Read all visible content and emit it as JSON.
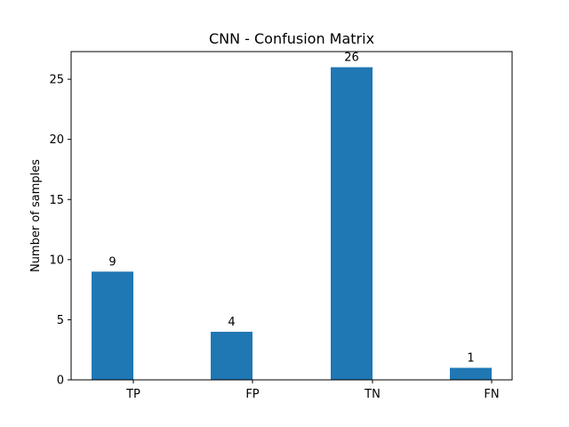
{
  "chart_data": {
    "type": "bar",
    "title": "CNN - Confusion Matrix",
    "xlabel": "",
    "ylabel": "Number of samples",
    "categories": [
      "TP",
      "FP",
      "TN",
      "FN"
    ],
    "values": [
      9,
      4,
      26,
      1
    ],
    "data_labels": [
      "9",
      "4",
      "26",
      "1"
    ],
    "ylim": [
      0,
      27.3
    ],
    "yticks": [
      0,
      5,
      10,
      15,
      20,
      25
    ],
    "ytick_labels": [
      "0",
      "5",
      "10",
      "15",
      "20",
      "25"
    ],
    "bar_color": "#1f77b4",
    "grid": false,
    "legend": "none"
  }
}
